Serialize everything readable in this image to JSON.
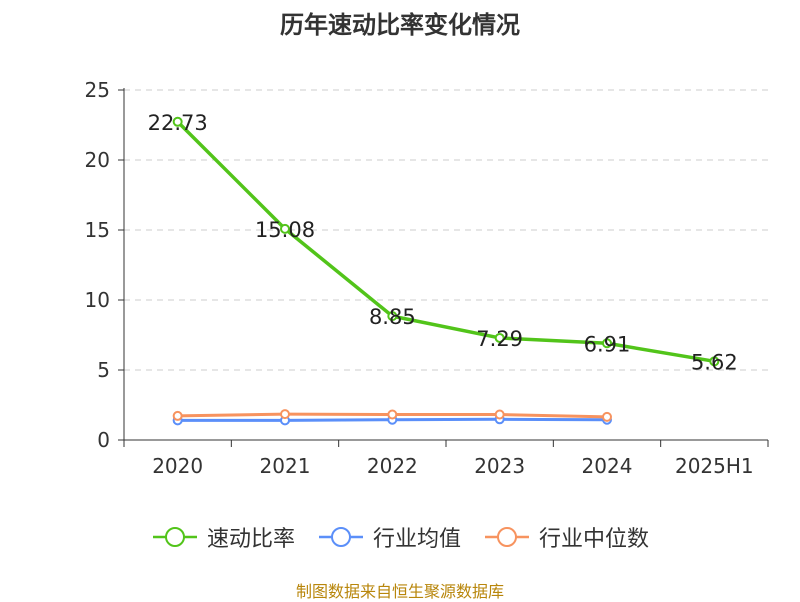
{
  "chart_data": {
    "type": "line",
    "title": "历年速动比率变化情况",
    "categories": [
      "2020",
      "2021",
      "2022",
      "2023",
      "2024",
      "2025H1"
    ],
    "ylim": [
      0,
      25
    ],
    "yticks": [
      0,
      5,
      10,
      15,
      20,
      25
    ],
    "grid": true,
    "legend_position": "bottom",
    "series": [
      {
        "name": "速动比率",
        "color": "#52c41a",
        "values": [
          22.73,
          15.08,
          8.85,
          7.29,
          6.91,
          5.62
        ],
        "labels": [
          "22.73",
          "15.08",
          "8.85",
          "7.29",
          "6.91",
          "5.62"
        ]
      },
      {
        "name": "行业均值",
        "color": "#5b8ff9",
        "values": [
          1.4,
          1.4,
          1.45,
          1.48,
          1.45,
          null
        ]
      },
      {
        "name": "行业中位数",
        "color": "#f7935f",
        "values": [
          1.72,
          1.85,
          1.82,
          1.82,
          1.65,
          null
        ]
      }
    ]
  },
  "footer": {
    "source": "制图数据来自恒生聚源数据库"
  }
}
